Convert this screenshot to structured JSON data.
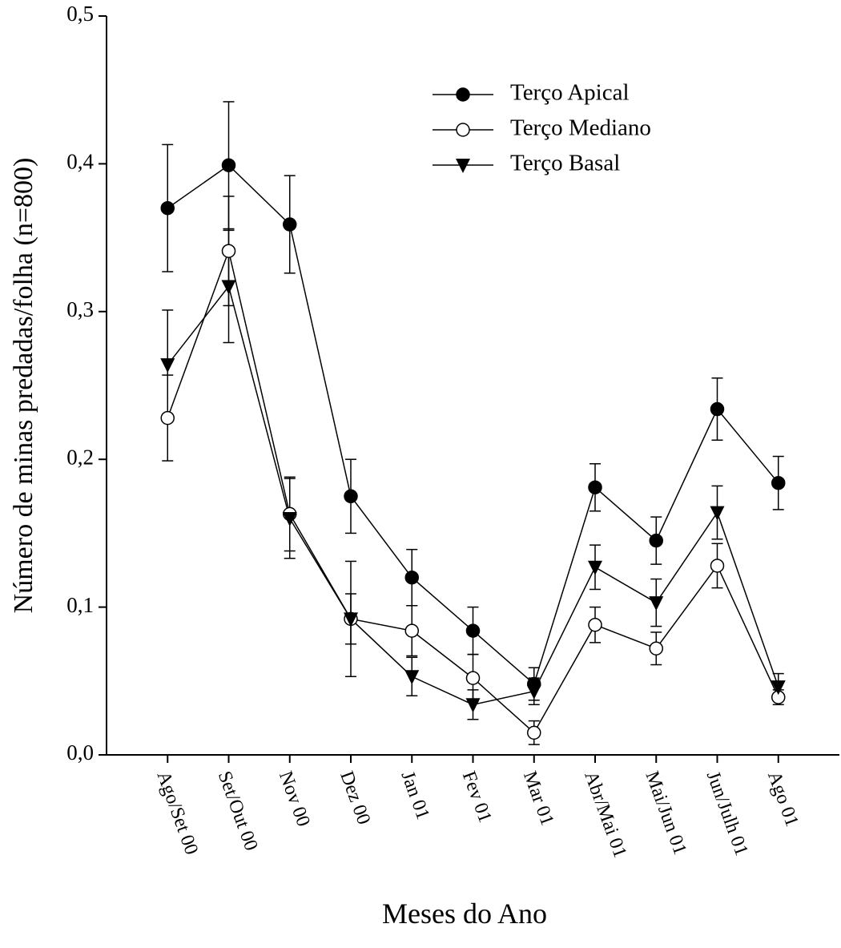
{
  "chart_data": {
    "type": "line",
    "x_label": "Meses do Ano",
    "y_label": "Número de minas predadas/folha (n=800)",
    "categories": [
      "Ago/Set 00",
      "Set/Out 00",
      "Nov 00",
      "Dez 00",
      "Jan 01",
      "Fev 01",
      "Mar 01",
      "Abr/Mai 01",
      "Mai/Jun 01",
      "Jun/Julh 01",
      "Ago 01"
    ],
    "series": [
      {
        "name": "Terço Apical",
        "color": "#000000",
        "marker": "filled-circle",
        "values": [
          0.37,
          0.399,
          0.359,
          0.175,
          0.12,
          0.084,
          0.048,
          0.181,
          0.145,
          0.234,
          0.184
        ],
        "errors": [
          0.043,
          0.043,
          0.033,
          0.025,
          0.019,
          0.016,
          0.011,
          0.016,
          0.016,
          0.021,
          0.018
        ]
      },
      {
        "name": "Terço Mediano",
        "color": "#000000",
        "marker": "open-circle",
        "values": [
          0.228,
          0.341,
          0.163,
          0.092,
          0.084,
          0.052,
          0.015,
          0.088,
          0.072,
          0.128,
          0.039
        ],
        "errors": [
          0.029,
          0.037,
          0.025,
          0.017,
          0.017,
          0.016,
          0.008,
          0.012,
          0.011,
          0.015,
          0.005
        ]
      },
      {
        "name": "Terço Basal",
        "color": "#000000",
        "marker": "down-triangle",
        "values": [
          0.264,
          0.317,
          0.16,
          0.092,
          0.053,
          0.034,
          0.043,
          0.127,
          0.103,
          0.164,
          0.046
        ],
        "errors": [
          0.037,
          0.038,
          0.027,
          0.039,
          0.013,
          0.01,
          0.009,
          0.015,
          0.016,
          0.018,
          0.009
        ]
      }
    ],
    "ylim": [
      0,
      0.5
    ],
    "yticks": [
      {
        "value": 0,
        "label": "0,0"
      },
      {
        "value": 0.1,
        "label": "0,1"
      },
      {
        "value": 0.2,
        "label": "0,2"
      },
      {
        "value": 0.3,
        "label": "0,3"
      },
      {
        "value": 0.4,
        "label": "0,4"
      },
      {
        "value": 0.5,
        "label": "0,5"
      }
    ],
    "legend": "upper-right"
  }
}
